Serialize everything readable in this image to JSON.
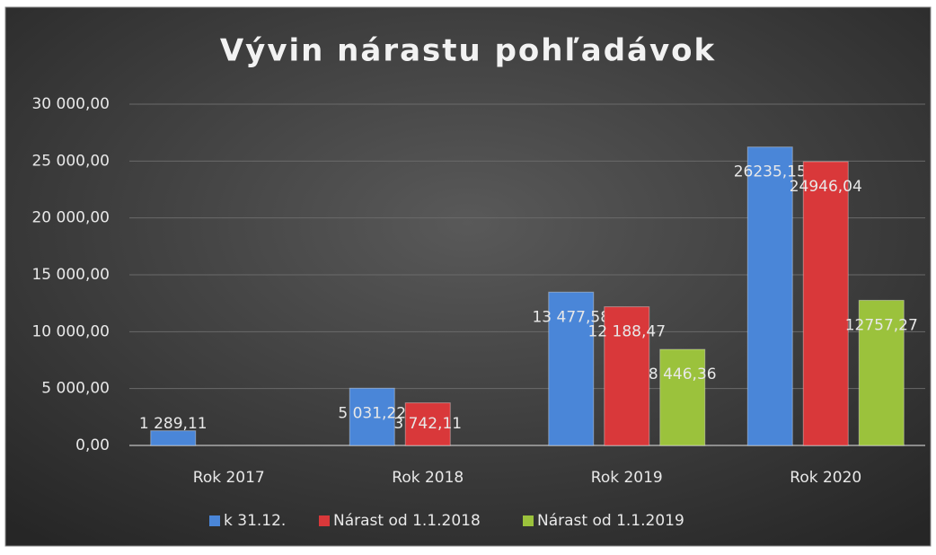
{
  "chart_data": {
    "type": "bar",
    "title": "Vývin nárastu pohľadávok",
    "categories": [
      "Rok 2017",
      "Rok 2018",
      "Rok 2019",
      "Rok 2020"
    ],
    "series": [
      {
        "name": "k 31.12.",
        "color": "#4a86d8",
        "values": [
          1289.11,
          5031.22,
          13477.58,
          26235.15
        ],
        "value_labels": [
          "1 289,11",
          "5 031,22",
          "13 477,58",
          "26235,15"
        ]
      },
      {
        "name": "Nárast od 1.1.2018",
        "color": "#d9383a",
        "values": [
          null,
          3742.11,
          12188.47,
          24946.04
        ],
        "value_labels": [
          null,
          "3 742,11",
          "12 188,47",
          "24946,04"
        ]
      },
      {
        "name": "Nárast od 1.1.2019",
        "color": "#9bc23c",
        "values": [
          null,
          null,
          8446.36,
          12757.27
        ],
        "value_labels": [
          null,
          null,
          "8 446,36",
          "12757,27"
        ]
      }
    ],
    "ylim": [
      0,
      30000
    ],
    "yticks": [
      {
        "value": 0,
        "label": "0,00"
      },
      {
        "value": 5000,
        "label": "5 000,00"
      },
      {
        "value": 10000,
        "label": "10 000,00"
      },
      {
        "value": 15000,
        "label": "15 000,00"
      },
      {
        "value": 20000,
        "label": "20 000,00"
      },
      {
        "value": 25000,
        "label": "25 000,00"
      },
      {
        "value": 30000,
        "label": "30 000,00"
      }
    ],
    "grid": true,
    "legend": "bottom"
  }
}
